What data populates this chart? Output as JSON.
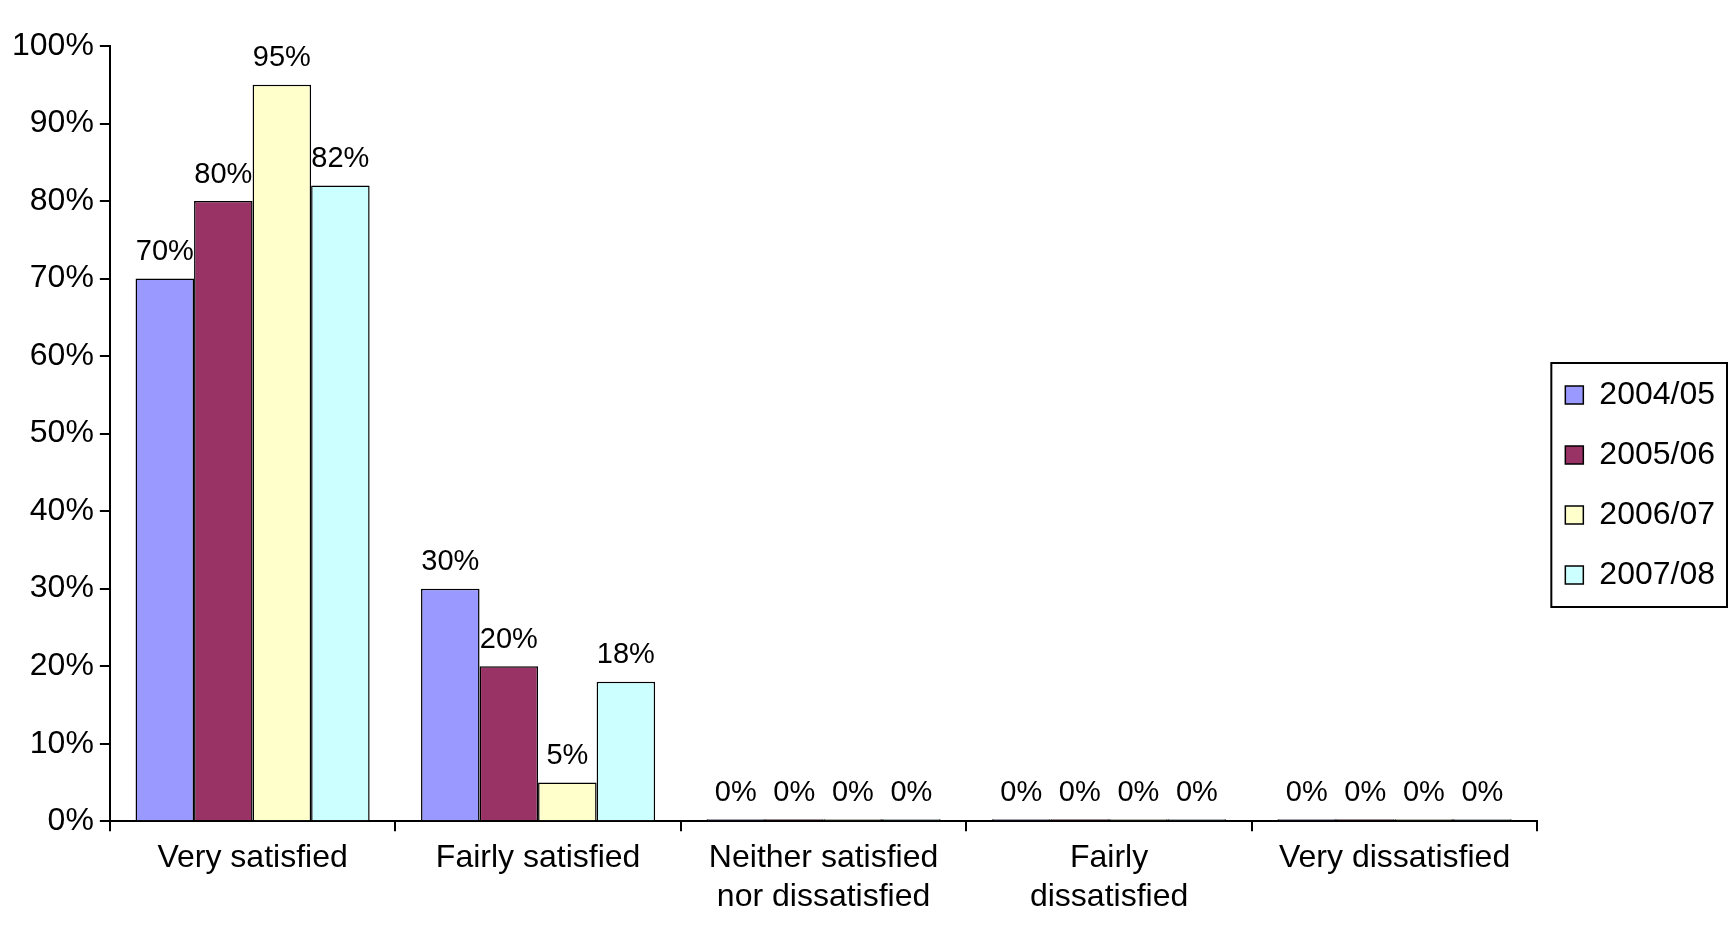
{
  "chart_data": {
    "type": "bar",
    "categories": [
      "Very satisfied",
      "Fairly satisfied",
      "Neither satisfied nor dissatisfied",
      "Fairly dissatisfied",
      "Very dissatisfied"
    ],
    "series": [
      {
        "name": "2004/05",
        "color": "#9999ff",
        "values": [
          70,
          30,
          0,
          0,
          0
        ],
        "value_labels": [
          "70%",
          "30%",
          "0%",
          "0%",
          "0%"
        ]
      },
      {
        "name": "2005/06",
        "color": "#993366",
        "values": [
          80,
          20,
          0,
          0,
          0
        ],
        "value_labels": [
          "80%",
          "20%",
          "0%",
          "0%",
          "0%"
        ]
      },
      {
        "name": "2006/07",
        "color": "#ffffcc",
        "values": [
          95,
          5,
          0,
          0,
          0
        ],
        "value_labels": [
          "95%",
          "5%",
          "0%",
          "0%",
          "0%"
        ]
      },
      {
        "name": "2007/08",
        "color": "#ccffff",
        "values": [
          82,
          18,
          0,
          0,
          0
        ],
        "value_labels": [
          "82%",
          "18%",
          "0%",
          "0%",
          "0%"
        ]
      }
    ],
    "ylim": [
      0,
      100
    ],
    "yticks": [
      {
        "value": 0,
        "label": "0%"
      },
      {
        "value": 10,
        "label": "10%"
      },
      {
        "value": 20,
        "label": "20%"
      },
      {
        "value": 30,
        "label": "30%"
      },
      {
        "value": 40,
        "label": "40%"
      },
      {
        "value": 50,
        "label": "50%"
      },
      {
        "value": 60,
        "label": "60%"
      },
      {
        "value": 70,
        "label": "70%"
      },
      {
        "value": 80,
        "label": "80%"
      },
      {
        "value": 90,
        "label": "90%"
      },
      {
        "value": 100,
        "label": "100%"
      }
    ],
    "grid": false,
    "legend": "right"
  }
}
